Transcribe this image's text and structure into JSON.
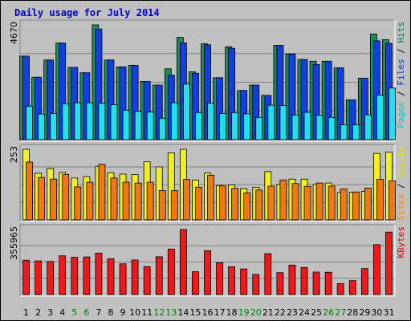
{
  "chart_data": {
    "type": "bar",
    "title": "Daily usage for July 2014",
    "title_color": "#0000cc",
    "frame_color": "#c0c0c0",
    "categories": [
      "1",
      "2",
      "3",
      "4",
      "5",
      "6",
      "7",
      "8",
      "9",
      "10",
      "11",
      "12",
      "13",
      "14",
      "15",
      "16",
      "17",
      "18",
      "19",
      "20",
      "21",
      "22",
      "23",
      "24",
      "25",
      "26",
      "27",
      "28",
      "29",
      "30",
      "31"
    ],
    "weekend_days": [
      "5",
      "6",
      "12",
      "13",
      "19",
      "20",
      "26",
      "27"
    ],
    "weekend_color": "#008000",
    "weekday_color": "#000000",
    "panels": [
      {
        "id": "hits",
        "ymax": 4670,
        "ymax_label": "4670",
        "grid": true,
        "right_label": [
          {
            "text": "Pages",
            "color": "#00cccc"
          },
          {
            "text": " / ",
            "color": "#000000"
          },
          {
            "text": "Files",
            "color": "#0033cc"
          },
          {
            "text": " / ",
            "color": "#000000"
          },
          {
            "text": "Hits",
            "color": "#008060"
          }
        ],
        "series": [
          {
            "name": "Hits",
            "color": "#1c8c5c",
            "offset": -4,
            "values": [
              3400,
              2540,
              3240,
              3930,
              2940,
              2720,
              4670,
              3240,
              2960,
              3020,
              2370,
              2220,
              2880,
              4160,
              2760,
              3900,
              2520,
              3780,
              2000,
              2220,
              1800,
              3840,
              3490,
              3260,
              3190,
              3190,
              2920,
              1620,
              2500,
              4300,
              4070
            ]
          },
          {
            "name": "Files",
            "color": "#1040e0",
            "offset": 0,
            "values": [
              3400,
              2540,
              3240,
              3930,
              2940,
              2720,
              4500,
              3240,
              2960,
              3020,
              2370,
              2220,
              2620,
              3940,
              2700,
              3860,
              2520,
              3720,
              2000,
              2220,
              1800,
              3840,
              3490,
              3260,
              3060,
              3190,
              2920,
              1620,
              2500,
              4020,
              3920
            ]
          },
          {
            "name": "Pages",
            "color": "#20e0f0",
            "offset": 4,
            "values": [
              1360,
              1040,
              1060,
              1460,
              1500,
              1500,
              1480,
              1420,
              1200,
              1150,
              1120,
              870,
              1500,
              2260,
              1100,
              1480,
              1060,
              1100,
              1050,
              900,
              1400,
              1390,
              1000,
              1110,
              990,
              900,
              600,
              600,
              1010,
              1810,
              2100
            ]
          }
        ]
      },
      {
        "id": "visits",
        "ymax": 253,
        "ymax_label": "253",
        "grid": true,
        "right_label": [
          {
            "text": "Sites",
            "color": "#ff8000"
          },
          {
            "text": " / ",
            "color": "#000000"
          },
          {
            "text": "Visits",
            "color": "#e6e600"
          }
        ],
        "series": [
          {
            "name": "Visits",
            "color": "#f0f020",
            "offset": 0,
            "values": [
              253,
              167,
              184,
              170,
              150,
              155,
              192,
              169,
              164,
              162,
              208,
              190,
              240,
              253,
              143,
              168,
              123,
              125,
              112,
              116,
              173,
              127,
              146,
              146,
              127,
              132,
              98,
              99,
              102,
              238,
              243
            ]
          },
          {
            "name": "Sites",
            "color": "#f07810",
            "offset": 4,
            "values": [
              207,
              152,
              146,
              163,
              118,
              135,
              199,
              150,
              135,
              132,
              135,
              105,
              105,
              145,
              117,
              160,
              122,
              113,
              97,
              107,
              121,
              143,
              130,
              120,
              132,
              121,
              111,
              100,
              114,
              145,
              140
            ]
          }
        ]
      },
      {
        "id": "kbytes",
        "ymax": 355965,
        "ymax_label": "355965",
        "grid": true,
        "right_label": [
          {
            "text": "KBytes",
            "color": "#e00000"
          }
        ],
        "series": [
          {
            "name": "KBytes",
            "color": "#f01818",
            "offset": 0,
            "values": [
              188000,
              184000,
              181000,
              212000,
              204000,
              206000,
              227000,
              196000,
              168000,
              189000,
              153000,
              207000,
              249000,
              355965,
              125000,
              240000,
              174000,
              152000,
              140000,
              110000,
              224000,
              120000,
              161000,
              148000,
              123000,
              122000,
              60000,
              76000,
              142000,
              273000,
              342000
            ]
          }
        ]
      }
    ]
  }
}
